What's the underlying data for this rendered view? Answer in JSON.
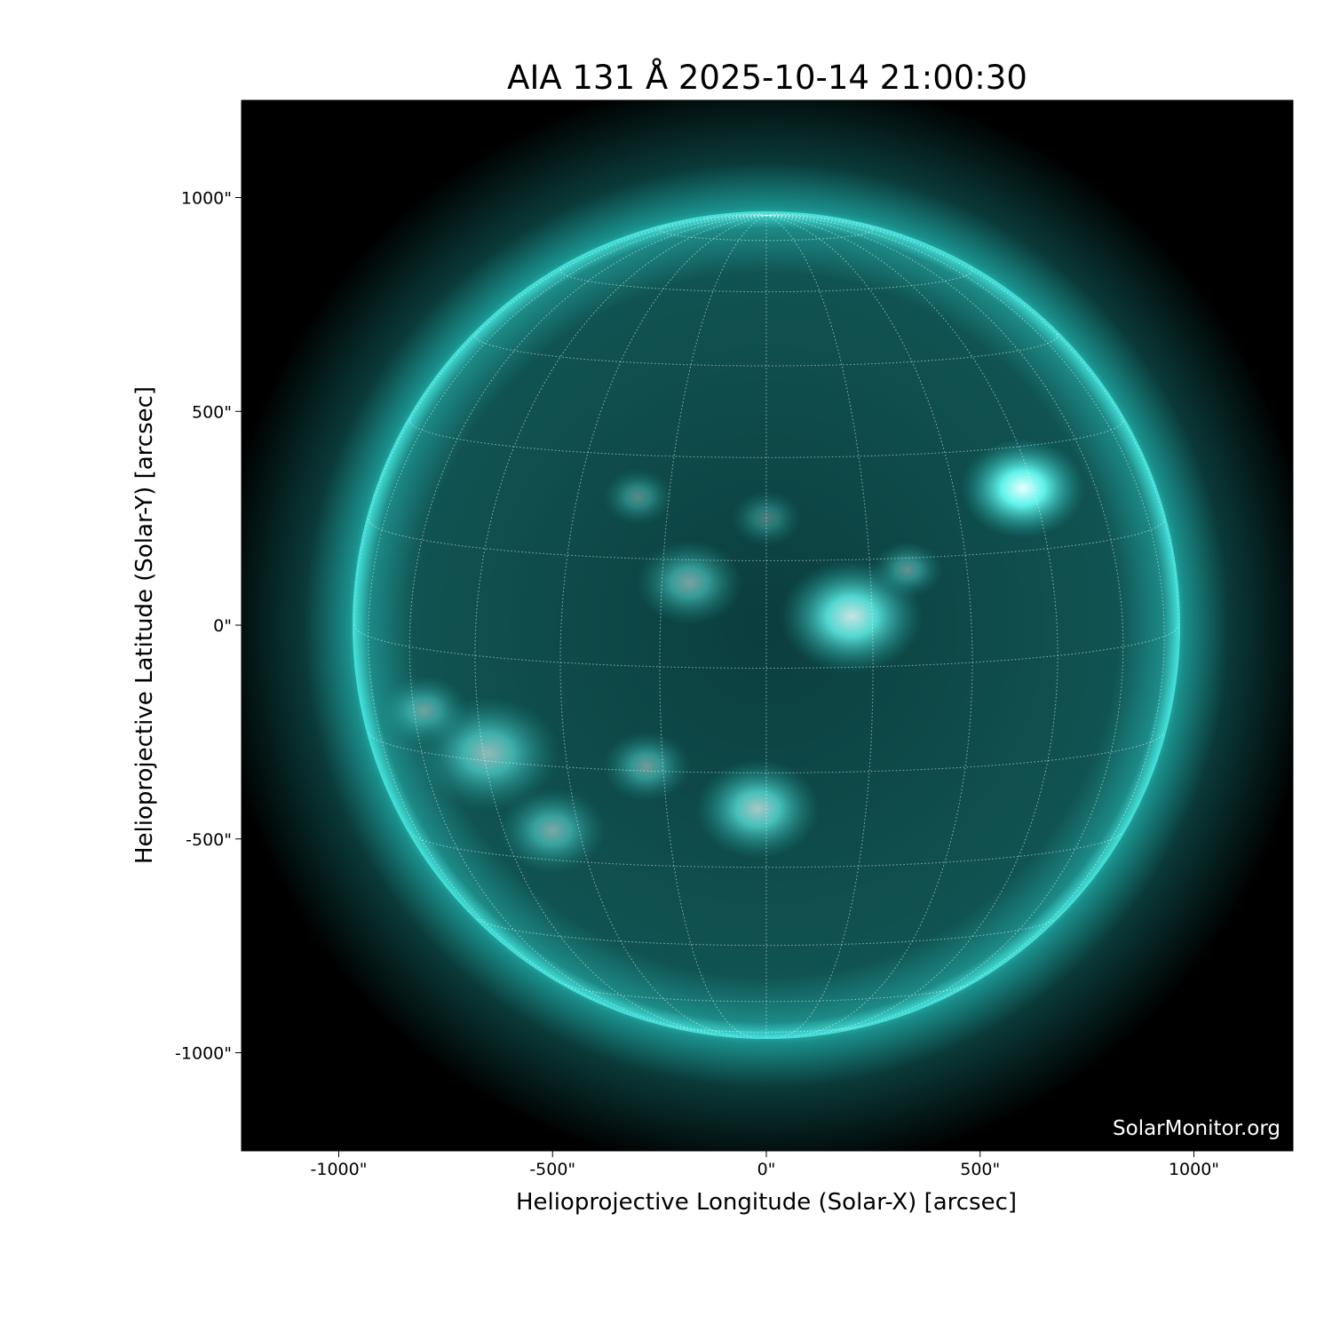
{
  "title": "AIA 131 Å 2025-10-14 21:00:30",
  "credit": "SolarMonitor.org",
  "axes": {
    "xlabel": "Helioprojective Longitude (Solar-X) [arcsec]",
    "ylabel": "Helioprojective Latitude (Solar-Y) [arcsec]",
    "xticks": [
      "-1000\"",
      "-500\"",
      "0\"",
      "500\"",
      "1000\""
    ],
    "yticks": [
      "1000\"",
      "500\"",
      "0\"",
      "-500\"",
      "-1000\""
    ],
    "xtick_values": [
      -1000,
      -500,
      0,
      500,
      1000
    ],
    "ytick_values": [
      1000,
      500,
      0,
      -500,
      -1000
    ],
    "xlim": [
      -1230,
      1230
    ],
    "ylim": [
      -1230,
      1230
    ]
  },
  "image": {
    "colormap": "teal (sdoaia131)",
    "colors": {
      "background": "#000000",
      "disk": "#0a4a4a",
      "limb": "#2fd6d0",
      "bright": "#e8ffff"
    },
    "solar_radius_arcsec": 966,
    "grid": "heliographic, dotted white, 15° spacing"
  }
}
